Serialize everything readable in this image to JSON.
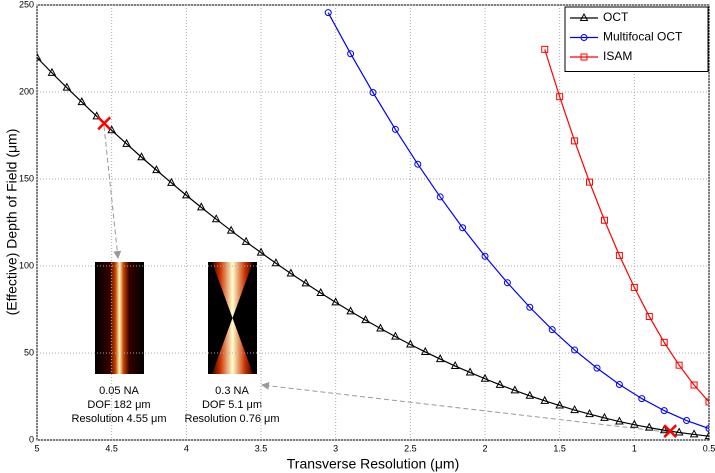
{
  "chart_data": {
    "type": "line",
    "xlabel": "Transverse Resolution  (μm)",
    "ylabel": "(Effective) Depth of Field  (μm)",
    "xlim": [
      5,
      0.5
    ],
    "xticks": [
      5,
      4.5,
      4,
      3.5,
      3,
      2.5,
      2,
      1.5,
      1,
      0.5
    ],
    "ylim": [
      0,
      250
    ],
    "yticks": [
      0,
      50,
      100,
      150,
      200,
      250
    ],
    "grid": true,
    "legend": "upper right",
    "series": [
      {
        "name": "OCT",
        "color": "#000000",
        "marker": "triangle",
        "x": [
          5.0,
          4.9,
          4.8,
          4.7,
          4.6,
          4.5,
          4.4,
          4.3,
          4.2,
          4.1,
          4.0,
          3.9,
          3.8,
          3.7,
          3.6,
          3.5,
          3.4,
          3.3,
          3.2,
          3.1,
          3.0,
          2.9,
          2.8,
          2.7,
          2.6,
          2.5,
          2.4,
          2.3,
          2.2,
          2.1,
          2.0,
          1.9,
          1.8,
          1.7,
          1.6,
          1.5,
          1.4,
          1.3,
          1.2,
          1.1,
          1.0,
          0.9,
          0.8,
          0.7,
          0.6,
          0.5
        ],
        "values": [
          219.8,
          211.0,
          202.5,
          194.2,
          186.0,
          178.0,
          170.2,
          162.5,
          155.1,
          147.8,
          140.6,
          133.7,
          126.9,
          120.3,
          113.9,
          107.7,
          101.6,
          95.7,
          90.0,
          84.5,
          79.1,
          73.9,
          68.9,
          64.1,
          59.4,
          54.9,
          50.6,
          46.5,
          42.5,
          38.8,
          35.2,
          31.7,
          28.5,
          25.4,
          22.5,
          19.8,
          17.2,
          14.9,
          12.7,
          10.6,
          8.8,
          7.1,
          5.6,
          4.3,
          3.2,
          2.2
        ]
      },
      {
        "name": "Multifocal OCT",
        "color": "#0000ff",
        "marker": "circle",
        "x": [
          3.05,
          2.9,
          2.75,
          2.6,
          2.45,
          2.3,
          2.15,
          2.0,
          1.85,
          1.7,
          1.55,
          1.4,
          1.25,
          1.1,
          0.95,
          0.8,
          0.65,
          0.5
        ],
        "values": [
          245.6,
          222.0,
          199.7,
          178.5,
          158.5,
          139.7,
          122.0,
          105.6,
          90.4,
          76.3,
          63.4,
          51.7,
          41.3,
          31.9,
          23.8,
          16.9,
          11.2,
          6.6
        ]
      },
      {
        "name": "ISAM",
        "color": "#ff0000",
        "marker": "square",
        "x": [
          1.6,
          1.5,
          1.4,
          1.3,
          1.2,
          1.1,
          1.0,
          0.9,
          0.8,
          0.7,
          0.6,
          0.5
        ],
        "values": [
          224.5,
          197.3,
          171.9,
          148.2,
          126.3,
          106.1,
          87.7,
          71.0,
          56.1,
          43.0,
          31.6,
          21.9
        ]
      }
    ],
    "highlights": {
      "color": "#ff0000",
      "x": [
        4.55,
        0.76
      ],
      "values": [
        182,
        5.1
      ]
    },
    "annotations": [
      [
        "0.05 NA",
        "DOF 182 μm",
        "Resolution 4.55 μm"
      ],
      [
        "0.3 NA",
        "DOF 5.1 μm",
        "Resolution 0.76 μm"
      ]
    ]
  }
}
